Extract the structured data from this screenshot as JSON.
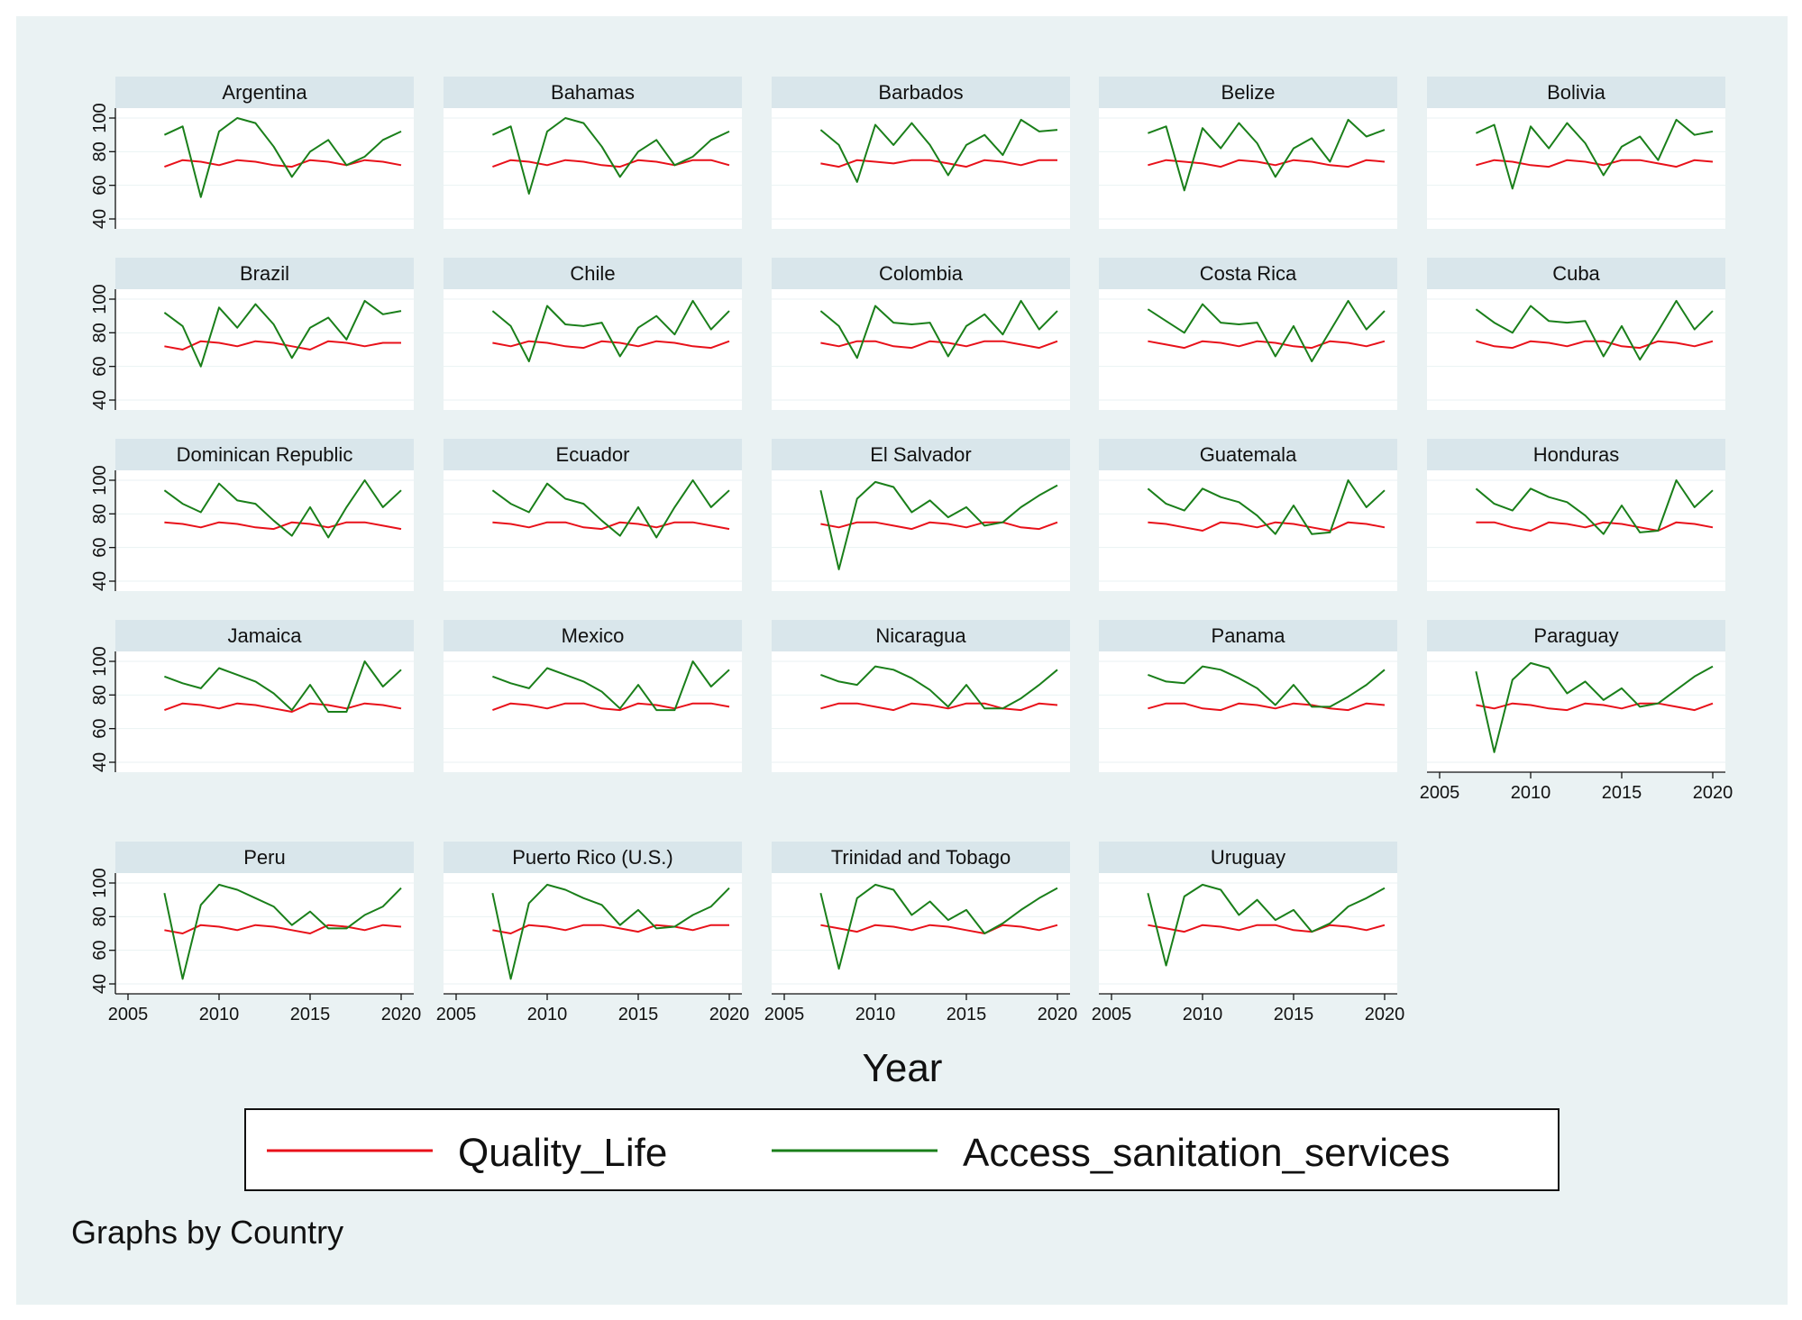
{
  "chart_data": {
    "type": "line",
    "layout": "small-multiples",
    "xlabel": "Year",
    "ylabel": "",
    "note": "Graphs by Country",
    "xlim": [
      2005,
      2020
    ],
    "ylim": [
      40,
      100
    ],
    "xticks": [
      2005,
      2010,
      2015,
      2020
    ],
    "yticks": [
      40,
      60,
      80,
      100
    ],
    "x": [
      2007,
      2008,
      2009,
      2010,
      2011,
      2012,
      2013,
      2014,
      2015,
      2016,
      2017,
      2018,
      2019,
      2020
    ],
    "legend": [
      {
        "name": "Quality_Life",
        "color": "#e8111a"
      },
      {
        "name": "Access_sanitation_services",
        "color": "#1a7f1a"
      }
    ],
    "panels": [
      {
        "title": "Argentina",
        "Quality_Life": [
          71,
          75,
          74,
          72,
          75,
          74,
          72,
          71,
          75,
          74,
          72,
          75,
          74,
          72
        ],
        "Access_sanitation_services": [
          90,
          95,
          53,
          92,
          100,
          97,
          83,
          65,
          80,
          87,
          72,
          77,
          87,
          92
        ]
      },
      {
        "title": "Bahamas",
        "Quality_Life": [
          71,
          75,
          74,
          72,
          75,
          74,
          72,
          71,
          75,
          74,
          72,
          75,
          75,
          72
        ],
        "Access_sanitation_services": [
          90,
          95,
          55,
          92,
          100,
          97,
          83,
          65,
          80,
          87,
          72,
          77,
          87,
          92
        ]
      },
      {
        "title": "Barbados",
        "Quality_Life": [
          73,
          71,
          75,
          74,
          73,
          75,
          75,
          73,
          71,
          75,
          74,
          72,
          75,
          75
        ],
        "Access_sanitation_services": [
          93,
          84,
          62,
          96,
          84,
          97,
          84,
          66,
          84,
          90,
          78,
          99,
          92,
          93
        ]
      },
      {
        "title": "Belize",
        "Quality_Life": [
          72,
          75,
          74,
          73,
          71,
          75,
          74,
          72,
          75,
          74,
          72,
          71,
          75,
          74
        ],
        "Access_sanitation_services": [
          91,
          95,
          57,
          94,
          82,
          97,
          85,
          65,
          82,
          88,
          74,
          99,
          89,
          93
        ]
      },
      {
        "title": "Bolivia",
        "Quality_Life": [
          72,
          75,
          74,
          72,
          71,
          75,
          74,
          72,
          75,
          75,
          73,
          71,
          75,
          74
        ],
        "Access_sanitation_services": [
          91,
          96,
          58,
          95,
          82,
          97,
          85,
          66,
          83,
          89,
          75,
          99,
          90,
          92
        ]
      },
      {
        "title": "Brazil",
        "Quality_Life": [
          72,
          70,
          75,
          74,
          72,
          75,
          74,
          72,
          70,
          75,
          74,
          72,
          74,
          74
        ],
        "Access_sanitation_services": [
          92,
          84,
          60,
          95,
          83,
          97,
          85,
          65,
          83,
          89,
          76,
          99,
          91,
          93
        ]
      },
      {
        "title": "Chile",
        "Quality_Life": [
          74,
          72,
          75,
          74,
          72,
          71,
          75,
          74,
          72,
          75,
          74,
          72,
          71,
          75
        ],
        "Access_sanitation_services": [
          93,
          84,
          63,
          96,
          85,
          84,
          86,
          66,
          83,
          90,
          79,
          99,
          82,
          93
        ]
      },
      {
        "title": "Colombia",
        "Quality_Life": [
          74,
          72,
          75,
          75,
          72,
          71,
          75,
          74,
          72,
          75,
          75,
          73,
          71,
          75
        ],
        "Access_sanitation_services": [
          93,
          84,
          65,
          96,
          86,
          85,
          86,
          66,
          84,
          91,
          79,
          99,
          82,
          93
        ]
      },
      {
        "title": "Costa Rica",
        "Quality_Life": [
          75,
          73,
          71,
          75,
          74,
          72,
          75,
          74,
          72,
          71,
          75,
          74,
          72,
          75
        ],
        "Access_sanitation_services": [
          94,
          87,
          80,
          97,
          86,
          85,
          86,
          66,
          84,
          63,
          81,
          99,
          82,
          93
        ]
      },
      {
        "title": "Cuba",
        "Quality_Life": [
          75,
          72,
          71,
          75,
          74,
          72,
          75,
          75,
          72,
          71,
          75,
          74,
          72,
          75
        ],
        "Access_sanitation_services": [
          94,
          86,
          80,
          96,
          87,
          86,
          87,
          66,
          84,
          64,
          81,
          99,
          82,
          93
        ]
      },
      {
        "title": "Dominican Republic",
        "Quality_Life": [
          75,
          74,
          72,
          75,
          74,
          72,
          71,
          75,
          74,
          72,
          75,
          75,
          73,
          71
        ],
        "Access_sanitation_services": [
          94,
          86,
          81,
          98,
          88,
          86,
          76,
          67,
          84,
          66,
          84,
          100,
          84,
          94
        ]
      },
      {
        "title": "Ecuador",
        "Quality_Life": [
          75,
          74,
          72,
          75,
          75,
          72,
          71,
          75,
          74,
          72,
          75,
          75,
          73,
          71
        ],
        "Access_sanitation_services": [
          94,
          86,
          81,
          98,
          89,
          86,
          76,
          67,
          84,
          66,
          84,
          100,
          84,
          94
        ]
      },
      {
        "title": "El Salvador",
        "Quality_Life": [
          74,
          72,
          75,
          75,
          73,
          71,
          75,
          74,
          72,
          75,
          75,
          72,
          71,
          75
        ],
        "Access_sanitation_services": [
          94,
          47,
          89,
          99,
          96,
          81,
          88,
          78,
          84,
          73,
          75,
          84,
          91,
          97
        ]
      },
      {
        "title": "Guatemala",
        "Quality_Life": [
          75,
          74,
          72,
          70,
          75,
          74,
          72,
          75,
          74,
          72,
          70,
          75,
          74,
          72
        ],
        "Access_sanitation_services": [
          95,
          86,
          82,
          95,
          90,
          87,
          79,
          68,
          85,
          68,
          69,
          100,
          84,
          94
        ]
      },
      {
        "title": "Honduras",
        "Quality_Life": [
          75,
          75,
          72,
          70,
          75,
          74,
          72,
          75,
          74,
          72,
          70,
          75,
          74,
          72
        ],
        "Access_sanitation_services": [
          95,
          86,
          82,
          95,
          90,
          87,
          79,
          68,
          85,
          69,
          70,
          100,
          84,
          94
        ]
      },
      {
        "title": "Jamaica",
        "Quality_Life": [
          71,
          75,
          74,
          72,
          75,
          74,
          72,
          70,
          75,
          74,
          72,
          75,
          74,
          72
        ],
        "Access_sanitation_services": [
          91,
          87,
          84,
          96,
          92,
          88,
          81,
          71,
          86,
          70,
          70,
          100,
          85,
          95
        ]
      },
      {
        "title": "Mexico",
        "Quality_Life": [
          71,
          75,
          74,
          72,
          75,
          75,
          72,
          71,
          75,
          74,
          72,
          75,
          75,
          73
        ],
        "Access_sanitation_services": [
          91,
          87,
          84,
          96,
          92,
          88,
          82,
          72,
          86,
          71,
          71,
          100,
          85,
          95
        ]
      },
      {
        "title": "Nicaragua",
        "Quality_Life": [
          72,
          75,
          75,
          73,
          71,
          75,
          74,
          72,
          75,
          75,
          72,
          71,
          75,
          74
        ],
        "Access_sanitation_services": [
          92,
          88,
          86,
          97,
          95,
          90,
          83,
          73,
          86,
          72,
          72,
          78,
          86,
          95
        ]
      },
      {
        "title": "Panama",
        "Quality_Life": [
          72,
          75,
          75,
          72,
          71,
          75,
          74,
          72,
          75,
          74,
          72,
          71,
          75,
          74
        ],
        "Access_sanitation_services": [
          92,
          88,
          87,
          97,
          95,
          90,
          84,
          74,
          86,
          73,
          73,
          79,
          86,
          95
        ]
      },
      {
        "title": "Paraguay",
        "Quality_Life": [
          74,
          72,
          75,
          74,
          72,
          71,
          75,
          74,
          72,
          75,
          75,
          73,
          71,
          75
        ],
        "Access_sanitation_services": [
          94,
          46,
          89,
          99,
          96,
          81,
          88,
          77,
          84,
          73,
          75,
          83,
          91,
          97
        ]
      },
      {
        "title": "Peru",
        "Quality_Life": [
          72,
          70,
          75,
          74,
          72,
          75,
          74,
          72,
          70,
          75,
          74,
          72,
          75,
          74
        ],
        "Access_sanitation_services": [
          94,
          43,
          87,
          99,
          96,
          91,
          86,
          75,
          83,
          73,
          73,
          81,
          86,
          97
        ]
      },
      {
        "title": "Puerto Rico (U.S.)",
        "Quality_Life": [
          72,
          70,
          75,
          74,
          72,
          75,
          75,
          73,
          71,
          75,
          74,
          72,
          75,
          75
        ],
        "Access_sanitation_services": [
          94,
          43,
          88,
          99,
          96,
          91,
          87,
          75,
          84,
          73,
          74,
          81,
          86,
          97
        ]
      },
      {
        "title": "Trinidad and Tobago",
        "Quality_Life": [
          75,
          73,
          71,
          75,
          74,
          72,
          75,
          74,
          72,
          70,
          75,
          74,
          72,
          75
        ],
        "Access_sanitation_services": [
          94,
          49,
          91,
          99,
          96,
          81,
          89,
          78,
          84,
          70,
          76,
          84,
          91,
          97
        ]
      },
      {
        "title": "Uruguay",
        "Quality_Life": [
          75,
          73,
          71,
          75,
          74,
          72,
          75,
          75,
          72,
          71,
          75,
          74,
          72,
          75
        ],
        "Access_sanitation_services": [
          94,
          51,
          92,
          99,
          96,
          81,
          90,
          78,
          84,
          71,
          76,
          86,
          91,
          97
        ]
      }
    ]
  }
}
